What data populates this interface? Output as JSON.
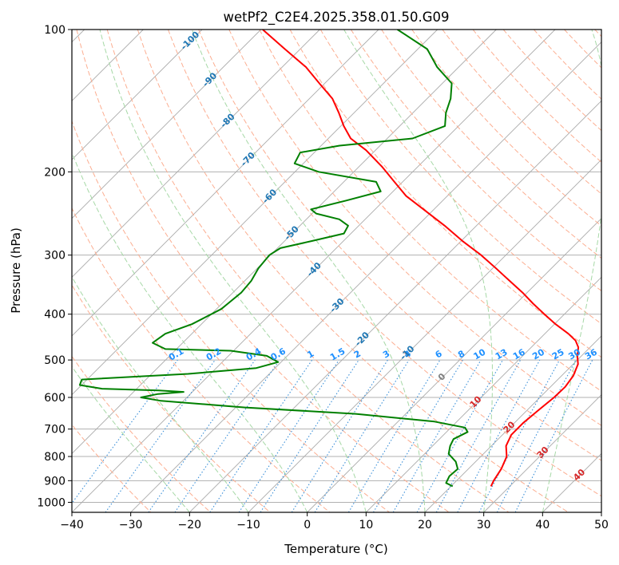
{
  "chart_data": {
    "type": "line",
    "subtype": "skew-t log-p diagram",
    "title": "wetPf2_C2E4.2025.358.01.50.G09",
    "xlabel": "Temperature (°C)",
    "ylabel": "Pressure (hPa)",
    "xlim": [
      -40,
      50
    ],
    "ylim": [
      1050,
      100
    ],
    "y_scale": "log",
    "grid": true,
    "x_ticks": [
      "−40",
      "−30",
      "−20",
      "−10",
      "0",
      "10",
      "20",
      "30",
      "40",
      "50"
    ],
    "y_ticks": [
      {
        "p": 100,
        "label": "100"
      },
      {
        "p": 200,
        "label": "200"
      },
      {
        "p": 300,
        "label": "300"
      },
      {
        "p": 400,
        "label": "400"
      },
      {
        "p": 500,
        "label": "500"
      },
      {
        "p": 600,
        "label": "600"
      },
      {
        "p": 700,
        "label": "700"
      },
      {
        "p": 800,
        "label": "800"
      },
      {
        "p": 900,
        "label": "900"
      },
      {
        "p": 1000,
        "label": "1000"
      }
    ],
    "isotherm_temps": [
      -120,
      -110,
      -100,
      -90,
      -80,
      -70,
      -60,
      -50,
      -40,
      -30,
      -20,
      -10,
      0,
      10,
      20,
      30,
      40,
      50
    ],
    "dry_adiabat_thetas": [
      -30,
      -20,
      -10,
      0,
      10,
      20,
      30,
      40,
      50,
      60,
      70,
      80,
      90,
      100,
      110,
      120,
      130,
      140,
      150,
      160,
      170,
      180,
      190,
      200
    ],
    "moist_adiabat_temps": [
      -20,
      -10,
      0,
      10,
      20,
      30,
      40
    ],
    "mixing_ratio_lines": [
      {
        "w": 0.1,
        "label": "0.1"
      },
      {
        "w": 0.2,
        "label": "0.2"
      },
      {
        "w": 0.4,
        "label": "0.4"
      },
      {
        "w": 0.6,
        "label": "0.6"
      },
      {
        "w": 1,
        "label": "1"
      },
      {
        "w": 1.5,
        "label": "1.5"
      },
      {
        "w": 2,
        "label": "2"
      },
      {
        "w": 3,
        "label": "3"
      },
      {
        "w": 4,
        "label": "4"
      },
      {
        "w": 6,
        "label": "6"
      },
      {
        "w": 8,
        "label": "8"
      },
      {
        "w": 10,
        "label": "10"
      },
      {
        "w": 13,
        "label": "13"
      },
      {
        "w": 16,
        "label": "16"
      },
      {
        "w": 20,
        "label": "20"
      },
      {
        "w": 25,
        "label": "25"
      },
      {
        "w": 30,
        "label": "30"
      },
      {
        "w": 36,
        "label": "36"
      }
    ],
    "isotherm_labels": [
      {
        "p": 105,
        "t": -100,
        "label": "-100"
      },
      {
        "p": 127,
        "t": -90,
        "label": "-90"
      },
      {
        "p": 155,
        "t": -80,
        "label": "-80"
      },
      {
        "p": 187,
        "t": -70,
        "label": "-70"
      },
      {
        "p": 224,
        "t": -60,
        "label": "-60"
      },
      {
        "p": 268,
        "t": -50,
        "label": "-50"
      },
      {
        "p": 320,
        "t": -40,
        "label": "-40"
      },
      {
        "p": 381,
        "t": -30,
        "label": "-30"
      },
      {
        "p": 449,
        "t": -20,
        "label": "-20"
      },
      {
        "p": 480,
        "t": -10,
        "label": "-10"
      },
      {
        "p": 540,
        "t": 0,
        "label": "0"
      },
      {
        "p": 610,
        "t": 10,
        "label": "10"
      },
      {
        "p": 690,
        "t": 20,
        "label": "20"
      },
      {
        "p": 780,
        "t": 30,
        "label": "30"
      },
      {
        "p": 870,
        "t": 40,
        "label": "40"
      }
    ],
    "series": [
      {
        "variable": "temperature",
        "color": "#ff0000",
        "points": [
          {
            "p": 925,
            "t": 26.8
          },
          {
            "p": 900,
            "t": 26.3
          },
          {
            "p": 850,
            "t": 25.6
          },
          {
            "p": 800,
            "t": 24.4
          },
          {
            "p": 760,
            "t": 22.5
          },
          {
            "p": 720,
            "t": 21.5
          },
          {
            "p": 680,
            "t": 21.5
          },
          {
            "p": 640,
            "t": 21.9
          },
          {
            "p": 600,
            "t": 22.4
          },
          {
            "p": 570,
            "t": 22.5
          },
          {
            "p": 540,
            "t": 22.0
          },
          {
            "p": 510,
            "t": 20.8
          },
          {
            "p": 490,
            "t": 19.3
          },
          {
            "p": 470,
            "t": 18.0
          },
          {
            "p": 455,
            "t": 16.4
          },
          {
            "p": 440,
            "t": 14.0
          },
          {
            "p": 420,
            "t": 10.2
          },
          {
            "p": 400,
            "t": 6.6
          },
          {
            "p": 380,
            "t": 2.9
          },
          {
            "p": 360,
            "t": -0.8
          },
          {
            "p": 340,
            "t": -5.0
          },
          {
            "p": 320,
            "t": -9.4
          },
          {
            "p": 300,
            "t": -14.2
          },
          {
            "p": 280,
            "t": -19.8
          },
          {
            "p": 260,
            "t": -25.4
          },
          {
            "p": 240,
            "t": -31.8
          },
          {
            "p": 225,
            "t": -37.0
          },
          {
            "p": 210,
            "t": -41.4
          },
          {
            "p": 195,
            "t": -46.1
          },
          {
            "p": 180,
            "t": -51.6
          },
          {
            "p": 170,
            "t": -56.2
          },
          {
            "p": 160,
            "t": -59.5
          },
          {
            "p": 150,
            "t": -62.6
          },
          {
            "p": 140,
            "t": -66.1
          },
          {
            "p": 130,
            "t": -70.9
          },
          {
            "p": 120,
            "t": -76.0
          },
          {
            "p": 110,
            "t": -82.6
          },
          {
            "p": 100,
            "t": -89.7
          }
        ]
      },
      {
        "variable": "dewpoint",
        "color": "#008000",
        "points": [
          {
            "p": 925,
            "t": 20.3
          },
          {
            "p": 910,
            "t": 18.6
          },
          {
            "p": 880,
            "t": 18.0
          },
          {
            "p": 850,
            "t": 18.2
          },
          {
            "p": 820,
            "t": 16.6
          },
          {
            "p": 790,
            "t": 14.1
          },
          {
            "p": 760,
            "t": 13.0
          },
          {
            "p": 735,
            "t": 12.4
          },
          {
            "p": 710,
            "t": 13.6
          },
          {
            "p": 695,
            "t": 12.4
          },
          {
            "p": 675,
            "t": 6.2
          },
          {
            "p": 650,
            "t": -8.5
          },
          {
            "p": 630,
            "t": -28.4
          },
          {
            "p": 610,
            "t": -43.8
          },
          {
            "p": 600,
            "t": -47.8
          },
          {
            "p": 590,
            "t": -45.5
          },
          {
            "p": 584,
            "t": -41.5
          },
          {
            "p": 580,
            "t": -46.0
          },
          {
            "p": 575,
            "t": -55.9
          },
          {
            "p": 565,
            "t": -60.3
          },
          {
            "p": 550,
            "t": -60.9
          },
          {
            "p": 535,
            "t": -43.8
          },
          {
            "p": 520,
            "t": -33.2
          },
          {
            "p": 505,
            "t": -30.5
          },
          {
            "p": 490,
            "t": -33.5
          },
          {
            "p": 478,
            "t": -40.5
          },
          {
            "p": 474,
            "t": -51.9
          },
          {
            "p": 460,
            "t": -55.1
          },
          {
            "p": 440,
            "t": -54.5
          },
          {
            "p": 420,
            "t": -51.6
          },
          {
            "p": 390,
            "t": -49.2
          },
          {
            "p": 360,
            "t": -48.6
          },
          {
            "p": 340,
            "t": -48.9
          },
          {
            "p": 320,
            "t": -49.8
          },
          {
            "p": 300,
            "t": -50.2
          },
          {
            "p": 290,
            "t": -49.5
          },
          {
            "p": 280,
            "t": -45.3
          },
          {
            "p": 270,
            "t": -41.2
          },
          {
            "p": 260,
            "t": -41.8
          },
          {
            "p": 252,
            "t": -44.4
          },
          {
            "p": 245,
            "t": -49.3
          },
          {
            "p": 240,
            "t": -50.9
          },
          {
            "p": 230,
            "t": -46.4
          },
          {
            "p": 220,
            "t": -42.1
          },
          {
            "p": 210,
            "t": -44.5
          },
          {
            "p": 200,
            "t": -56.0
          },
          {
            "p": 192,
            "t": -61.5
          },
          {
            "p": 182,
            "t": -62.4
          },
          {
            "p": 176,
            "t": -56.9
          },
          {
            "p": 170,
            "t": -45.7
          },
          {
            "p": 160,
            "t": -42.3
          },
          {
            "p": 150,
            "t": -44.4
          },
          {
            "p": 140,
            "t": -46.0
          },
          {
            "p": 130,
            "t": -48.4
          },
          {
            "p": 120,
            "t": -53.7
          },
          {
            "p": 110,
            "t": -58.4
          },
          {
            "p": 100,
            "t": -66.8
          }
        ]
      }
    ]
  }
}
